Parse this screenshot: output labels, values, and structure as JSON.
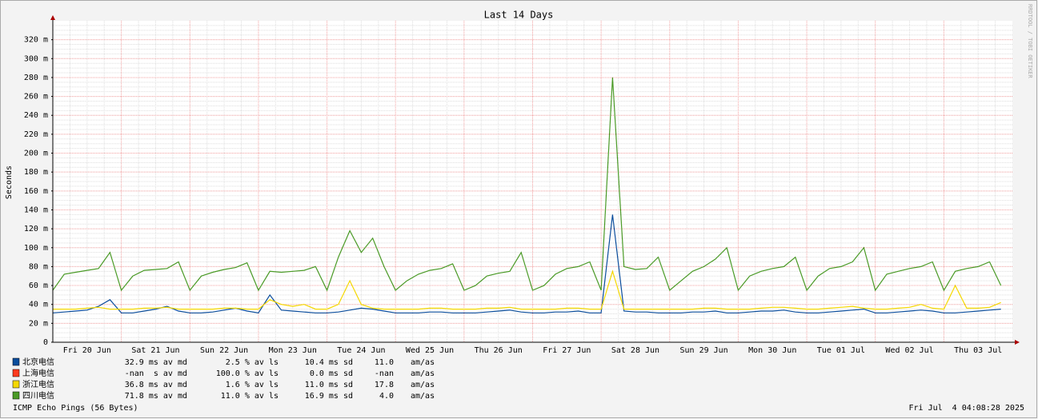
{
  "chart_data": {
    "type": "line",
    "title": "Last 14 Days",
    "y_label": "Seconds",
    "watermark": "RRDTOOL / TOBI OETIKER",
    "footer": "ICMP Echo Pings (56 Bytes)",
    "timestamp": "Fri Jul  4 04:08:28 2025",
    "xlim": [
      0,
      336
    ],
    "xticks": [
      {
        "value": 12,
        "label": "Fri 20 Jun"
      },
      {
        "value": 36,
        "label": "Sat 21 Jun"
      },
      {
        "value": 60,
        "label": "Sun 22 Jun"
      },
      {
        "value": 84,
        "label": "Mon 23 Jun"
      },
      {
        "value": 108,
        "label": "Tue 24 Jun"
      },
      {
        "value": 132,
        "label": "Wed 25 Jun"
      },
      {
        "value": 156,
        "label": "Thu 26 Jun"
      },
      {
        "value": 180,
        "label": "Fri 27 Jun"
      },
      {
        "value": 204,
        "label": "Sat 28 Jun"
      },
      {
        "value": 228,
        "label": "Sun 29 Jun"
      },
      {
        "value": 252,
        "label": "Mon 30 Jun"
      },
      {
        "value": 276,
        "label": "Tue 01 Jul"
      },
      {
        "value": 300,
        "label": "Wed 02 Jul"
      },
      {
        "value": 324,
        "label": "Thu 03 Jul"
      }
    ],
    "ylim": [
      0,
      0.34
    ],
    "yticks": [
      0,
      {
        "value": 0.02,
        "label": "20 m"
      },
      {
        "value": 0.04,
        "label": "40 m"
      },
      {
        "value": 0.06,
        "label": "60 m"
      },
      {
        "value": 0.08,
        "label": "80 m"
      },
      {
        "value": 0.1,
        "label": "100 m"
      },
      {
        "value": 0.12,
        "label": "120 m"
      },
      {
        "value": 0.14,
        "label": "140 m"
      },
      {
        "value": 0.16,
        "label": "160 m"
      },
      {
        "value": 0.18,
        "label": "180 m"
      },
      {
        "value": 0.2,
        "label": "200 m"
      },
      {
        "value": 0.22,
        "label": "220 m"
      },
      {
        "value": 0.24,
        "label": "240 m"
      },
      {
        "value": 0.26,
        "label": "260 m"
      },
      {
        "value": 0.28,
        "label": "280 m"
      },
      {
        "value": 0.3,
        "label": "300 m"
      },
      {
        "value": 0.32,
        "label": "320 m"
      }
    ],
    "grid": true,
    "x": [
      0,
      4,
      8,
      12,
      16,
      20,
      24,
      28,
      32,
      36,
      40,
      44,
      48,
      52,
      56,
      60,
      64,
      68,
      72,
      76,
      80,
      84,
      88,
      92,
      96,
      100,
      104,
      108,
      112,
      116,
      120,
      124,
      128,
      132,
      136,
      140,
      144,
      148,
      152,
      156,
      160,
      164,
      168,
      172,
      176,
      180,
      184,
      188,
      192,
      196,
      200,
      204,
      208,
      212,
      216,
      220,
      224,
      228,
      232,
      236,
      240,
      244,
      248,
      252,
      256,
      260,
      264,
      268,
      272,
      276,
      280,
      284,
      288,
      292,
      296,
      300,
      304,
      308,
      312,
      316,
      320,
      324,
      328,
      332
    ],
    "series": [
      {
        "name": "北京电信",
        "color": "#0b4d9c",
        "stats": [
          "32.9 ms av md",
          "2.5 % av ls",
          "10.4 ms sd",
          "11.0",
          "am/as"
        ],
        "values": [
          0.031,
          0.032,
          0.033,
          0.034,
          0.038,
          0.045,
          0.031,
          0.031,
          0.033,
          0.035,
          0.038,
          0.033,
          0.031,
          0.031,
          0.032,
          0.034,
          0.036,
          0.033,
          0.031,
          0.05,
          0.034,
          0.033,
          0.032,
          0.031,
          0.031,
          0.032,
          0.034,
          0.036,
          0.035,
          0.033,
          0.031,
          0.031,
          0.031,
          0.032,
          0.032,
          0.031,
          0.031,
          0.031,
          0.032,
          0.033,
          0.034,
          0.032,
          0.031,
          0.031,
          0.032,
          0.032,
          0.033,
          0.031,
          0.031,
          0.135,
          0.033,
          0.032,
          0.032,
          0.031,
          0.031,
          0.031,
          0.032,
          0.032,
          0.033,
          0.031,
          0.031,
          0.032,
          0.033,
          0.033,
          0.034,
          0.032,
          0.031,
          0.031,
          0.032,
          0.033,
          0.034,
          0.035,
          0.031,
          0.031,
          0.032,
          0.033,
          0.034,
          0.033,
          0.031,
          0.031,
          0.032,
          0.033,
          0.034,
          0.035
        ]
      },
      {
        "name": "上海电信",
        "color": "#ff3b1f",
        "stats": [
          "-nan  s av md",
          "100.0 % av ls",
          "0.0 ms sd",
          "-nan",
          "am/as"
        ],
        "values": [
          null,
          null,
          null,
          null,
          null,
          null,
          null,
          null,
          null,
          null,
          null,
          null,
          null,
          null,
          null,
          null,
          null,
          null,
          null,
          null,
          null,
          null,
          null,
          null,
          null,
          null,
          null,
          null,
          null,
          null,
          null,
          null,
          null,
          null,
          null,
          null,
          null,
          null,
          null,
          null,
          null,
          null,
          null,
          null,
          null,
          null,
          null,
          null,
          null,
          null,
          null,
          null,
          null,
          null,
          null,
          null,
          null,
          null,
          null,
          null,
          null,
          null,
          null,
          null,
          null,
          null,
          null,
          null,
          null,
          null,
          null,
          null,
          null,
          null,
          null,
          null,
          null,
          null,
          null,
          null,
          null,
          null,
          null,
          null
        ]
      },
      {
        "name": "浙江电信",
        "color": "#f5d800",
        "stats": [
          "36.8 ms av md",
          "1.6 % av ls",
          "11.0 ms sd",
          "17.8",
          "am/as"
        ],
        "values": [
          0.035,
          0.035,
          0.035,
          0.036,
          0.037,
          0.035,
          0.035,
          0.035,
          0.036,
          0.036,
          0.037,
          0.035,
          0.035,
          0.035,
          0.035,
          0.036,
          0.036,
          0.035,
          0.035,
          0.045,
          0.04,
          0.038,
          0.04,
          0.035,
          0.035,
          0.04,
          0.065,
          0.04,
          0.036,
          0.035,
          0.035,
          0.035,
          0.035,
          0.036,
          0.036,
          0.035,
          0.035,
          0.035,
          0.036,
          0.036,
          0.037,
          0.035,
          0.035,
          0.035,
          0.035,
          0.036,
          0.036,
          0.035,
          0.035,
          0.075,
          0.035,
          0.035,
          0.035,
          0.035,
          0.035,
          0.035,
          0.035,
          0.036,
          0.036,
          0.035,
          0.035,
          0.035,
          0.036,
          0.037,
          0.037,
          0.036,
          0.035,
          0.035,
          0.036,
          0.037,
          0.038,
          0.036,
          0.035,
          0.035,
          0.036,
          0.037,
          0.04,
          0.036,
          0.035,
          0.06,
          0.036,
          0.036,
          0.037,
          0.042
        ]
      },
      {
        "name": "四川电信",
        "color": "#4a9a26",
        "stats": [
          "71.8 ms av md",
          "11.0 % av ls",
          "16.9 ms sd",
          "4.0",
          "am/as"
        ],
        "values": [
          0.055,
          0.072,
          0.074,
          0.076,
          0.078,
          0.095,
          0.055,
          0.07,
          0.076,
          0.077,
          0.078,
          0.085,
          0.055,
          0.07,
          0.074,
          0.077,
          0.079,
          0.084,
          0.055,
          0.075,
          0.074,
          0.075,
          0.076,
          0.08,
          0.055,
          0.09,
          0.118,
          0.095,
          0.11,
          0.08,
          0.055,
          0.065,
          0.072,
          0.076,
          0.078,
          0.083,
          0.055,
          0.06,
          0.07,
          0.073,
          0.075,
          0.095,
          0.055,
          0.06,
          0.072,
          0.078,
          0.08,
          0.085,
          0.055,
          0.28,
          0.08,
          0.077,
          0.078,
          0.09,
          0.055,
          0.065,
          0.075,
          0.08,
          0.088,
          0.1,
          0.055,
          0.07,
          0.075,
          0.078,
          0.08,
          0.09,
          0.055,
          0.07,
          0.078,
          0.08,
          0.085,
          0.1,
          0.055,
          0.072,
          0.075,
          0.078,
          0.08,
          0.085,
          0.055,
          0.075,
          0.078,
          0.08,
          0.085,
          0.06
        ]
      }
    ]
  }
}
